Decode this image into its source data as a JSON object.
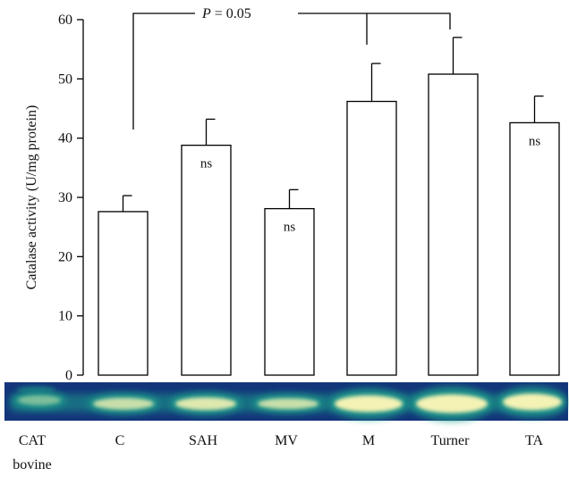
{
  "chart_data": {
    "type": "bar",
    "categories": [
      "C",
      "SAH",
      "MV",
      "M",
      "Turner",
      "TA"
    ],
    "values": [
      27.6,
      38.8,
      28.1,
      46.2,
      50.8,
      42.6
    ],
    "errors": [
      2.7,
      4.4,
      3.2,
      6.4,
      6.2,
      4.5
    ],
    "ylabel": "Catalase activity (U/mg protein)",
    "ylim": [
      0,
      60
    ],
    "yticks": [
      0,
      10,
      20,
      30,
      40,
      50,
      60
    ],
    "significance": {
      "label_prefix": "P",
      "label_value": "= 0.05",
      "from": "C",
      "to": [
        "M",
        "Turner"
      ]
    },
    "bar_annotations": [
      {
        "category": "SAH",
        "text": "ns"
      },
      {
        "category": "MV",
        "text": "ns"
      },
      {
        "category": "TA",
        "text": "ns"
      }
    ],
    "gel_lane_labels": [
      {
        "lines": [
          "CAT",
          "bovine"
        ]
      },
      {
        "lines": [
          "C"
        ]
      },
      {
        "lines": [
          "SAH"
        ]
      },
      {
        "lines": [
          "MV"
        ]
      },
      {
        "lines": [
          "M"
        ]
      },
      {
        "lines": [
          "Turner"
        ]
      },
      {
        "lines": [
          "TA"
        ]
      }
    ],
    "colors": {
      "bar_fill": "#ffffff",
      "bar_stroke": "#000000",
      "gel_background": "#14357a",
      "band_glow": "#1d9c8a",
      "band_core": "#f4f2b4"
    }
  }
}
